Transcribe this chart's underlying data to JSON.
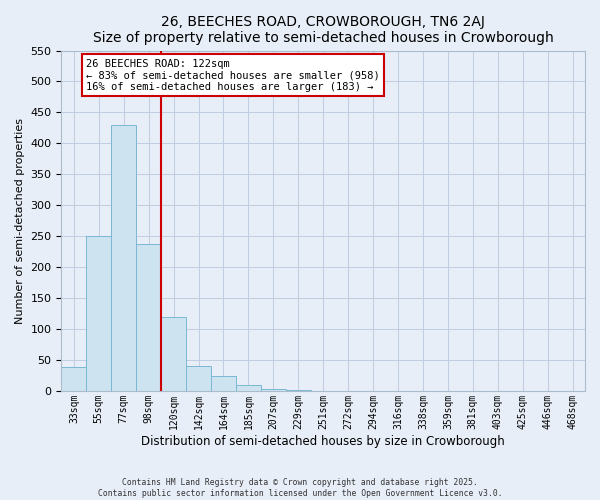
{
  "title": "26, BEECHES ROAD, CROWBOROUGH, TN6 2AJ",
  "subtitle": "Size of property relative to semi-detached houses in Crowborough",
  "xlabel": "Distribution of semi-detached houses by size in Crowborough",
  "ylabel": "Number of semi-detached properties",
  "bin_labels": [
    "33sqm",
    "55sqm",
    "77sqm",
    "98sqm",
    "120sqm",
    "142sqm",
    "164sqm",
    "185sqm",
    "207sqm",
    "229sqm",
    "251sqm",
    "272sqm",
    "294sqm",
    "316sqm",
    "338sqm",
    "359sqm",
    "381sqm",
    "403sqm",
    "425sqm",
    "446sqm",
    "468sqm"
  ],
  "bar_values": [
    38,
    251,
    430,
    238,
    119,
    40,
    24,
    9,
    3,
    1,
    0,
    0,
    0,
    0,
    0,
    0,
    0,
    0,
    0,
    0,
    0
  ],
  "bar_color": "#cde4f0",
  "bar_edge_color": "#7ab8d4",
  "ylim": [
    0,
    550
  ],
  "yticks": [
    0,
    50,
    100,
    150,
    200,
    250,
    300,
    350,
    400,
    450,
    500,
    550
  ],
  "property_line_color": "#cc0000",
  "annotation_title": "26 BEECHES ROAD: 122sqm",
  "annotation_line1": "← 83% of semi-detached houses are smaller (958)",
  "annotation_line2": "16% of semi-detached houses are larger (183) →",
  "footer_line1": "Contains HM Land Registry data © Crown copyright and database right 2025.",
  "footer_line2": "Contains public sector information licensed under the Open Government Licence v3.0.",
  "bg_color": "#e8eef8",
  "grid_color": "#c0cce0",
  "title_font": "DejaVu Sans",
  "annotation_font": "DejaVu Sans Mono"
}
